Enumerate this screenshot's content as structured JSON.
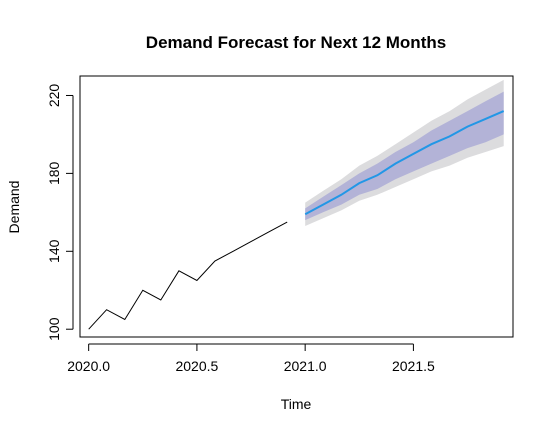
{
  "chart_data": {
    "type": "line",
    "title": "Demand Forecast for Next 12 Months",
    "xlabel": "Time",
    "ylabel": "Demand",
    "xlim": [
      2019.96,
      2021.96
    ],
    "ylim": [
      96,
      230
    ],
    "x_ticks": [
      2020.0,
      2020.5,
      2021.0,
      2021.5
    ],
    "x_tick_labels": [
      "2020.0",
      "2020.5",
      "2021.0",
      "2021.5"
    ],
    "y_ticks": [
      100,
      140,
      180,
      220
    ],
    "y_tick_labels": [
      "100",
      "140",
      "180",
      "220"
    ],
    "grid": false,
    "legend": "none",
    "series": [
      {
        "kind": "observed",
        "color": "#000000",
        "x": [
          2020.0,
          2020.083,
          2020.167,
          2020.25,
          2020.333,
          2020.417,
          2020.5,
          2020.583,
          2020.667,
          2020.75,
          2020.833,
          2020.917
        ],
        "y": [
          100,
          110,
          105,
          120,
          115,
          130,
          125,
          135,
          140,
          145,
          150,
          155
        ]
      },
      {
        "kind": "forecast",
        "color": "#2297E6",
        "x": [
          2021.0,
          2021.083,
          2021.167,
          2021.25,
          2021.333,
          2021.417,
          2021.5,
          2021.583,
          2021.667,
          2021.75,
          2021.833,
          2021.917
        ],
        "y": [
          159,
          164,
          169,
          175,
          179,
          185,
          190,
          195,
          199,
          204,
          208,
          212
        ],
        "lower80": [
          156,
          160,
          164,
          169,
          172,
          177,
          181,
          185,
          189,
          193,
          196,
          200
        ],
        "upper80": [
          162,
          168,
          174,
          180,
          185,
          191,
          196,
          202,
          207,
          212,
          217,
          222
        ],
        "lower95": [
          153,
          157,
          161,
          166,
          169,
          173,
          177,
          181,
          184,
          188,
          191,
          194
        ],
        "upper95": [
          165,
          171,
          177,
          184,
          189,
          195,
          201,
          207,
          212,
          218,
          223,
          228
        ]
      }
    ],
    "colors": {
      "band80": "#B3B3D7",
      "band95": "#DCDCDE",
      "axis": "#000000"
    }
  }
}
